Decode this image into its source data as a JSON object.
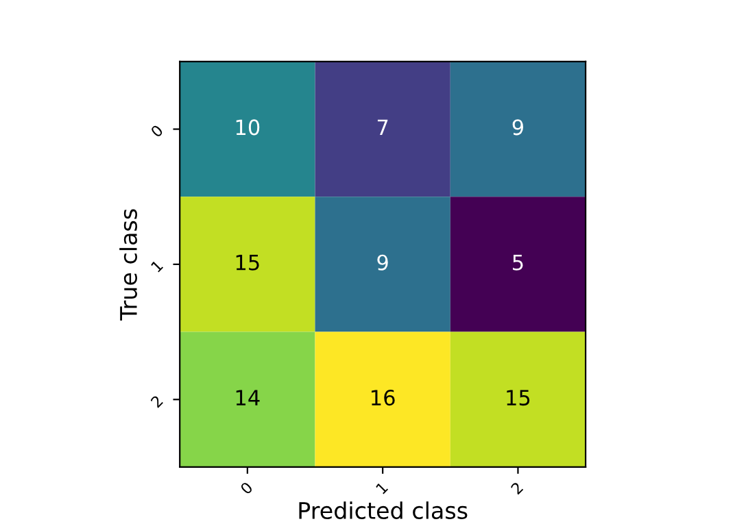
{
  "chart_data": {
    "type": "heatmap",
    "xlabel": "Predicted class",
    "ylabel": "True class",
    "categories": [
      "0",
      "1",
      "2"
    ],
    "y_categories": [
      "0",
      "1",
      "2"
    ],
    "cells": [
      [
        10,
        7,
        9
      ],
      [
        15,
        9,
        5
      ],
      [
        14,
        16,
        15
      ]
    ],
    "data_labels": true
  }
}
